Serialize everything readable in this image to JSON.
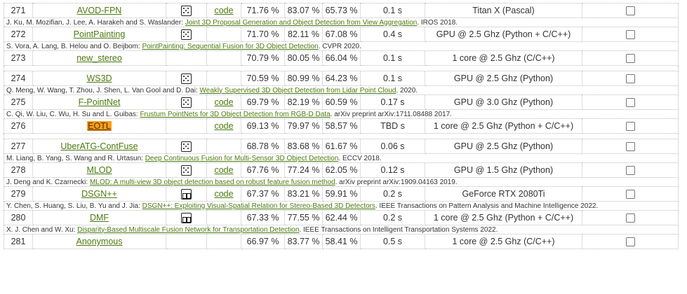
{
  "rows": [
    {
      "rank": "271",
      "method": "AVOD-FPN",
      "icon": "laser-points-icon",
      "code": "code",
      "mod": "71.76 %",
      "easy": "83.07 %",
      "hard": "65.73 %",
      "time": "0.1 s",
      "env": "Titan X (Pascal)",
      "cite_pre": "J. Ku, M. Mozifian, J. Lee, A. Harakeh and S. Waslander: ",
      "cite_link": "Joint 3D Proposal Generation and Object Detection from View Aggregation",
      "cite_post": ". IROS 2018."
    },
    {
      "rank": "272",
      "method": "PointPainting",
      "icon": "laser-points-icon",
      "code": "",
      "mod": "71.70 %",
      "easy": "82.11 %",
      "hard": "67.08 %",
      "time": "0.4 s",
      "env": "GPU @ 2.5 Ghz (Python + C/C++)",
      "cite_pre": "S. Vora, A. Lang, B. Helou and O. Beijbom: ",
      "cite_link": "PointPainting: Sequential Fusion for 3D Object Detection",
      "cite_post": ". CVPR 2020."
    },
    {
      "rank": "273",
      "method": "new_stereo",
      "icon": "",
      "code": "",
      "mod": "70.79 %",
      "easy": "80.05 %",
      "hard": "66.04 %",
      "time": "0.1 s",
      "env": "1 core @ 2.5 Ghz (C/C++)"
    },
    {
      "rank": "274",
      "method": "WS3D",
      "icon": "laser-points-icon",
      "code": "",
      "mod": "70.59 %",
      "easy": "80.99 %",
      "hard": "64.23 %",
      "time": "0.1 s",
      "env": "GPU @ 2.5 Ghz (Python)",
      "cite_pre": "Q. Meng, W. Wang, T. Zhou, J. Shen, L. Van Gool and D. Dai: ",
      "cite_link": "Weakly Supervised 3D Object Detection from Lidar Point Cloud",
      "cite_post": ". 2020."
    },
    {
      "rank": "275",
      "method": "F-PointNet",
      "icon": "laser-points-icon",
      "code": "code",
      "mod": "69.79 %",
      "easy": "82.19 %",
      "hard": "60.59 %",
      "time": "0.17 s",
      "env": "GPU @ 3.0 Ghz (Python)",
      "cite_pre": "C. Qi, W. Liu, C. Wu, H. Su and L. Guibas: ",
      "cite_link": "Frustum PointNets for 3D Object Detection from RGB-D Data",
      "cite_post": ". arXiv preprint arXiv:1711.08488 2017."
    },
    {
      "rank": "276",
      "method": "EOTL",
      "highlight": true,
      "icon": "",
      "code": "code",
      "mod": "69.13 %",
      "easy": "79.97 %",
      "hard": "58.57 %",
      "time": "TBD s",
      "env": "1 core @ 2.5 Ghz (Python + C/C++)"
    },
    {
      "rank": "277",
      "method": "UberATG-ContFuse",
      "icon": "laser-points-icon",
      "code": "",
      "mod": "68.78 %",
      "easy": "83.68 %",
      "hard": "61.67 %",
      "time": "0.06 s",
      "env": "GPU @ 2.5 Ghz (Python)",
      "cite_pre": "M. Liang, B. Yang, S. Wang and R. Urtasun: ",
      "cite_link": "Deep Continuous Fusion for Multi-Sensor 3D Object Detection",
      "cite_post": ". ECCV 2018."
    },
    {
      "rank": "278",
      "method": "MLOD",
      "icon": "laser-points-icon",
      "code": "code",
      "mod": "67.76 %",
      "easy": "77.24 %",
      "hard": "62.05 %",
      "time": "0.12 s",
      "env": "GPU @ 1.5 Ghz (Python)",
      "cite_pre": "J. Deng and K. Czarnecki: ",
      "cite_link": "MLOD: A multi-view 3D object detection based on robust feature fusion method",
      "cite_post": ". arXiv preprint arXiv:1909.04163 2019."
    },
    {
      "rank": "279",
      "method": "DSGN++",
      "icon": "stereo-icon",
      "code": "code",
      "mod": "67.37 %",
      "easy": "83.21 %",
      "hard": "59.91 %",
      "time": "0.2 s",
      "env": "GeForce RTX 2080Ti",
      "cite_pre": "Y. Chen, S. Huang, S. Liu, B. Yu and J. Jia: ",
      "cite_link": "DSGN++: Exploiting Visual-Spatial Relation for Stereo-Based 3D Detectors",
      "cite_post": ". IEEE Transactions on Pattern Analysis and Machine Intelligence 2022."
    },
    {
      "rank": "280",
      "method": "DMF",
      "icon": "stereo-icon",
      "code": "",
      "mod": "67.33 %",
      "easy": "77.55 %",
      "hard": "62.44 %",
      "time": "0.2 s",
      "env": "1 core @ 2.5 Ghz (Python + C/C++)",
      "cite_pre": "X. J. Chen and W. Xu: ",
      "cite_link": "Disparity-Based Multiscale Fusion Network for Transportation Detection",
      "cite_post": ". IEEE Transactions on Intelligent Transportation Systems 2022."
    },
    {
      "rank": "281",
      "method": "Anonymous",
      "icon": "",
      "code": "",
      "mod": "66.97 %",
      "easy": "83.77 %",
      "hard": "58.41 %",
      "time": "0.5 s",
      "env": "1 core @ 2.5 Ghz (C/C++)"
    }
  ]
}
